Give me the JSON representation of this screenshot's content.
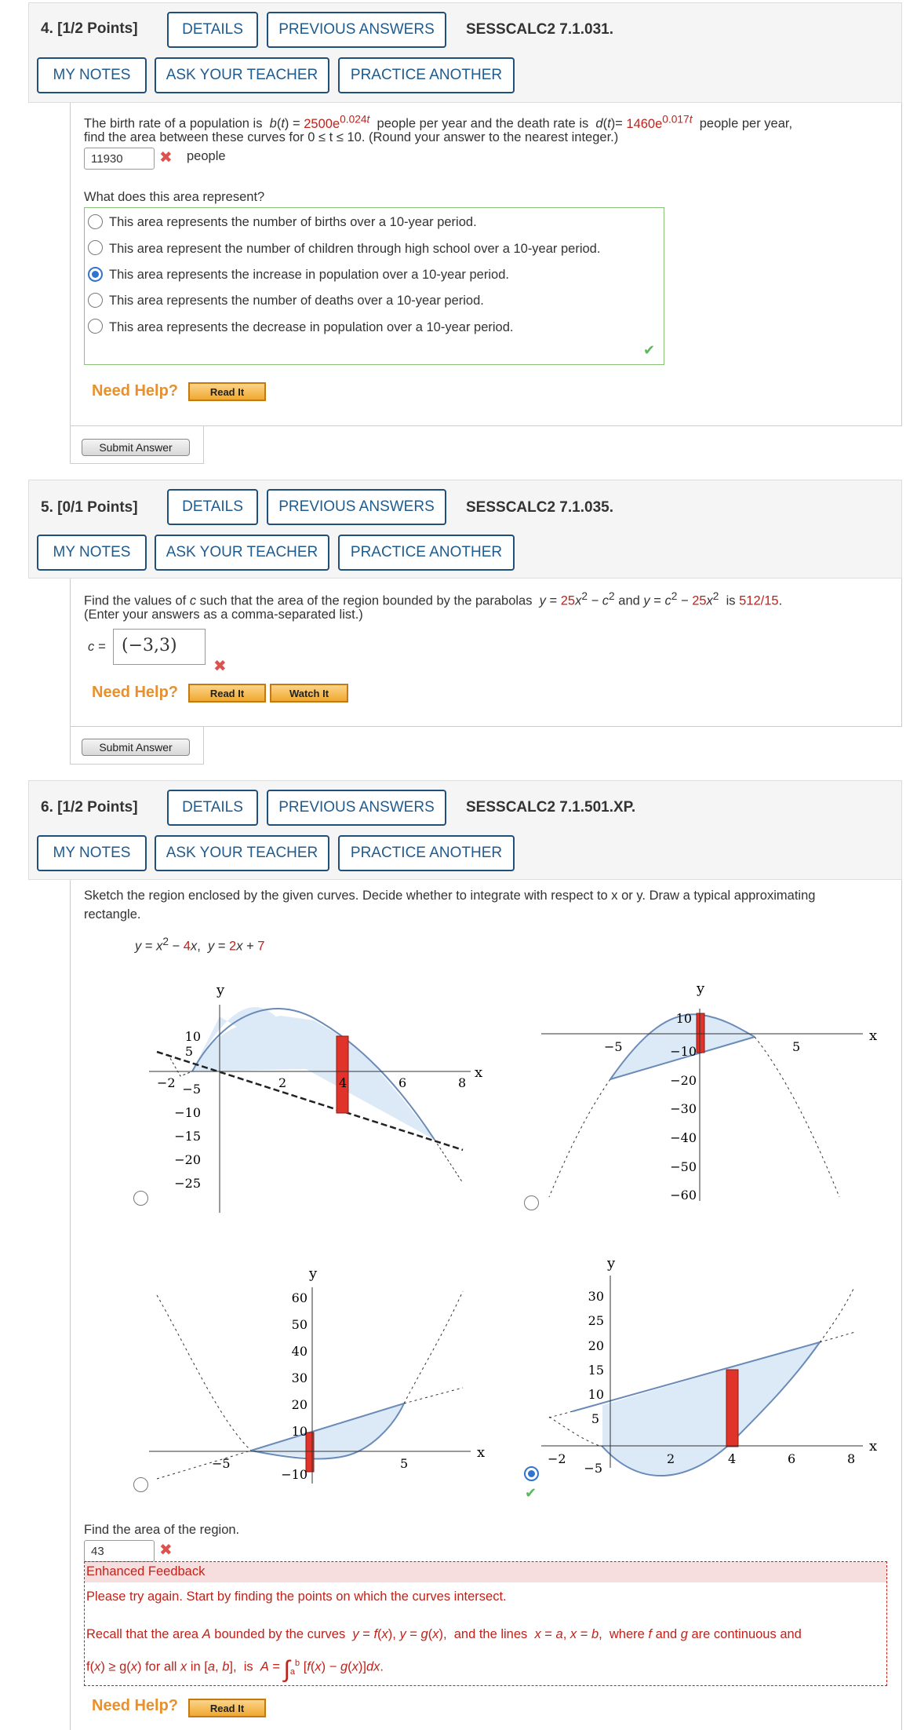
{
  "questions": [
    {
      "number": "4.",
      "points": "[1/2 Points]",
      "details": "DETAILS",
      "prev": "PREVIOUS ANSWERS",
      "code": "SESSCALC2 7.1.031.",
      "mynotes": "MY NOTES",
      "ask": "ASK YOUR TEACHER",
      "practice": "PRACTICE ANOTHER"
    },
    {
      "number": "5.",
      "points": "[0/1 Points]",
      "details": "DETAILS",
      "prev": "PREVIOUS ANSWERS",
      "code": "SESSCALC2 7.1.035.",
      "mynotes": "MY NOTES",
      "ask": "ASK YOUR TEACHER",
      "practice": "PRACTICE ANOTHER"
    },
    {
      "number": "6.",
      "points": "[1/2 Points]",
      "details": "DETAILS",
      "prev": "PREVIOUS ANSWERS",
      "code": "SESSCALC2 7.1.501.XP.",
      "mynotes": "MY NOTES",
      "ask": "ASK YOUR TEACHER",
      "practice": "PRACTICE ANOTHER"
    }
  ],
  "q4": {
    "line2": "find the area between these curves for 0 ≤ t ≤ 10. (Round your answer to the nearest integer.)",
    "answer": "11930",
    "unit": "people",
    "question2": "What does this area represent?",
    "options": [
      "This area represents the number of births over a 10-year period.",
      "This area represent the number of children through high school over a 10-year period.",
      "This area represents the increase in population over a 10-year period.",
      "This area represents the number of deaths over a 10-year period.",
      "This area represents the decrease in population over a 10-year period."
    ],
    "selected_index": 2
  },
  "q5": {
    "line2": "(Enter your answers as a comma-separated list.)",
    "answer": "(−3,3)"
  },
  "q6": {
    "line1": "Sketch the region enclosed by the given curves. Decide whether to integrate with respect to x or y. Draw a typical approximating",
    "line2": "rectangle.",
    "find_area": "Find the area of the region.",
    "answer": "43",
    "selected_graph": 3
  },
  "feedback": {
    "title": "Enhanced Feedback",
    "line1": "Please try again. Start by finding the points on which the curves intersect."
  },
  "help": {
    "need_help": "Need Help?",
    "read_it": "Read It",
    "watch_it": "Watch It",
    "submit": "Submit Answer"
  },
  "colors": {
    "link": "#1f5b8e",
    "accent_red": "#c0221a",
    "help_orange": "#e8902c",
    "radio_blue": "#2f74d0"
  }
}
